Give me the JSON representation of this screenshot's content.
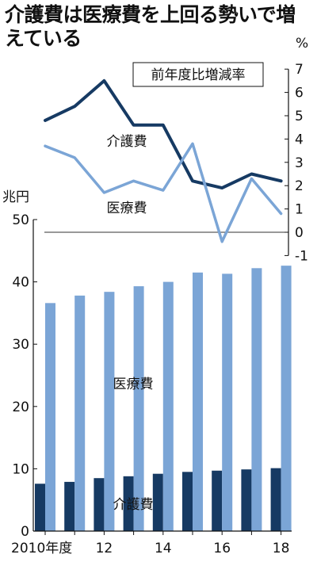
{
  "title": "介護費は医療費を上回る勢いで増えている",
  "chart_data": [
    {
      "type": "line",
      "title": "前年度比増減率",
      "ylabel": "%",
      "ylim": [
        -1,
        7
      ],
      "yticks": [
        -1,
        0,
        1,
        2,
        3,
        4,
        5,
        6,
        7
      ],
      "x": [
        2010,
        2011,
        2012,
        2013,
        2014,
        2015,
        2016,
        2017,
        2018
      ],
      "series": [
        {
          "name": "介護費",
          "color": "#163a63",
          "values": [
            4.8,
            5.4,
            6.5,
            4.6,
            4.6,
            2.2,
            1.9,
            2.5,
            2.2
          ]
        },
        {
          "name": "医療費",
          "color": "#7ba5d6",
          "values": [
            3.7,
            3.2,
            1.7,
            2.2,
            1.8,
            3.8,
            -0.4,
            2.3,
            0.8
          ]
        }
      ]
    },
    {
      "type": "bar",
      "ylabel": "兆円",
      "ylim": [
        0,
        50
      ],
      "yticks": [
        0,
        10,
        20,
        30,
        40,
        50
      ],
      "categories": [
        2010,
        2011,
        2012,
        2013,
        2014,
        2015,
        2016,
        2017,
        2018
      ],
      "xticklabels": [
        "2010年度",
        "",
        "12",
        "",
        "14",
        "",
        "16",
        "",
        "18"
      ],
      "series": [
        {
          "name": "介護費",
          "color": "#163a63",
          "values": [
            7.6,
            7.9,
            8.5,
            8.8,
            9.2,
            9.5,
            9.7,
            9.9,
            10.1
          ]
        },
        {
          "name": "医療費",
          "color": "#7ba5d6",
          "values": [
            36.6,
            37.8,
            38.4,
            39.3,
            40.0,
            41.5,
            41.3,
            42.2,
            42.6
          ]
        }
      ]
    }
  ]
}
